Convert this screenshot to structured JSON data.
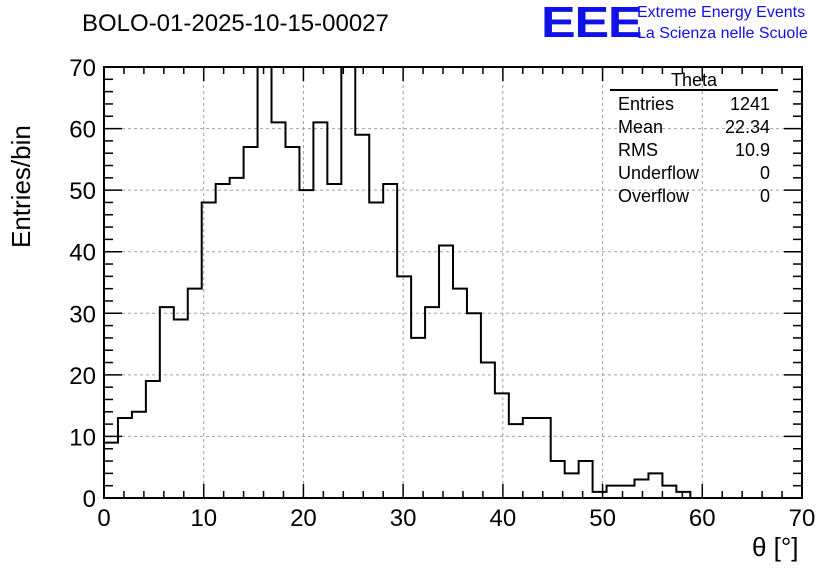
{
  "title": "BOLO-01-2025-10-15-00027",
  "logo": {
    "big": "EEE",
    "line1": "Extreme Energy Events",
    "line2": "La Scienza nelle Scuole",
    "color": "#1010e8"
  },
  "stats": {
    "name": "Theta",
    "rows": [
      {
        "label": "Entries",
        "value": "1241"
      },
      {
        "label": "Mean",
        "value": "22.34"
      },
      {
        "label": "RMS",
        "value": "10.9"
      },
      {
        "label": "Underflow",
        "value": "0"
      },
      {
        "label": "Overflow",
        "value": "0"
      }
    ]
  },
  "chart_data": {
    "type": "bar",
    "title": "BOLO-01-2025-10-15-00027",
    "xlabel": "θ [°]",
    "ylabel": "Entries/bin",
    "xlim": [
      0,
      70
    ],
    "ylim": [
      0,
      70
    ],
    "bin_width": 1.4,
    "grid": true,
    "xticks": [
      0,
      10,
      20,
      30,
      40,
      50,
      60,
      70
    ],
    "yticks": [
      0,
      10,
      20,
      30,
      40,
      50,
      60,
      70
    ],
    "values": [
      9,
      13,
      14,
      19,
      31,
      29,
      34,
      48,
      51,
      52,
      57,
      70,
      61,
      57,
      50,
      61,
      51,
      70,
      59,
      48,
      51,
      36,
      26,
      31,
      41,
      34,
      30,
      22,
      17,
      12,
      13,
      13,
      6,
      4,
      6,
      1,
      2,
      2,
      3,
      4,
      2,
      1,
      0,
      0,
      0,
      0,
      0,
      0,
      0,
      0
    ]
  }
}
